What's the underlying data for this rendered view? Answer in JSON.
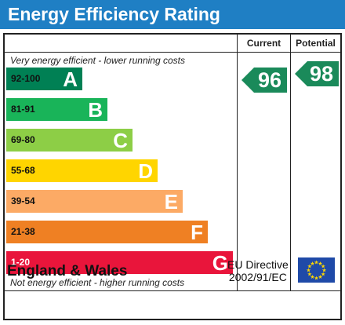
{
  "title": "Energy Efficiency Rating",
  "headers": {
    "current": "Current",
    "potential": "Potential"
  },
  "notes": {
    "top": "Very energy efficient - lower running costs",
    "bottom": "Not energy efficient - higher running costs"
  },
  "bands": [
    {
      "range": "92-100",
      "letter": "A",
      "color": "#008054",
      "range_color": "#111111"
    },
    {
      "range": "81-91",
      "letter": "B",
      "color": "#19b459",
      "range_color": "#111111"
    },
    {
      "range": "69-80",
      "letter": "C",
      "color": "#8dce46",
      "range_color": "#111111"
    },
    {
      "range": "55-68",
      "letter": "D",
      "color": "#ffd500",
      "range_color": "#111111"
    },
    {
      "range": "39-54",
      "letter": "E",
      "color": "#fcaa65",
      "range_color": "#111111"
    },
    {
      "range": "21-38",
      "letter": "F",
      "color": "#ef8023",
      "range_color": "#111111"
    },
    {
      "range": "1-20",
      "letter": "G",
      "color": "#e9153b",
      "range_color": "#ffffff"
    }
  ],
  "ratings": {
    "current": {
      "value": "96",
      "color": "#1a8a5a"
    },
    "potential": {
      "value": "98",
      "color": "#1a8a5a"
    }
  },
  "footer": {
    "country": "England & Wales",
    "directive_line1": "EU Directive",
    "directive_line2": "2002/91/EC"
  }
}
